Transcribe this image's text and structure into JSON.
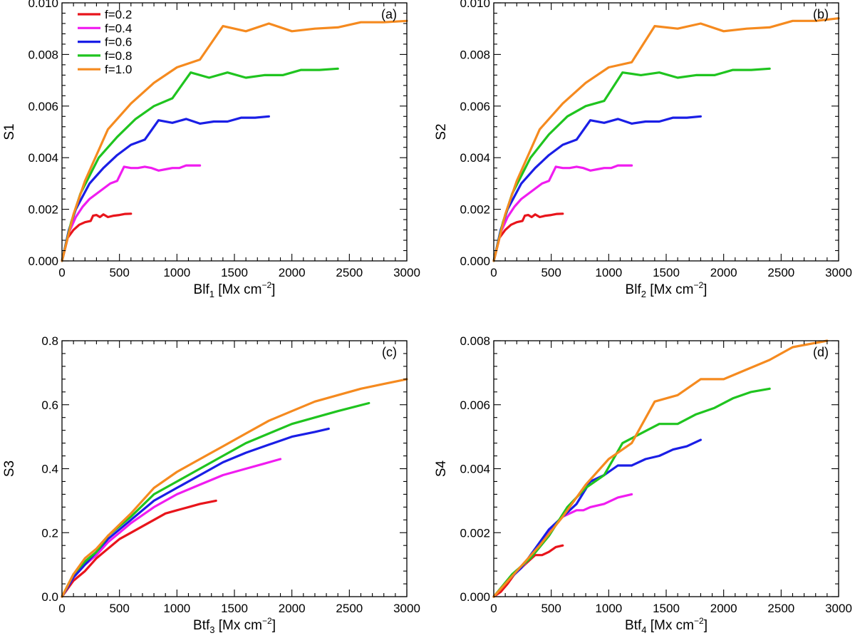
{
  "chart_data": [
    {
      "type": "line",
      "panel_label": "(a)",
      "ylabel": "S1",
      "xlabel": {
        "base": "Blf",
        "sub": "1",
        "unit_pre": " [Mx cm",
        "unit_sup": "−2",
        "unit_post": "]"
      },
      "xlim": [
        0,
        3000
      ],
      "ylim": [
        0,
        0.01
      ],
      "xticks": [
        0,
        500,
        1000,
        1500,
        2000,
        2500,
        3000
      ],
      "xtick_labels": [
        "0",
        "500",
        "1000",
        "1500",
        "2000",
        "2500",
        "3000"
      ],
      "yticks": [
        0,
        0.002,
        0.004,
        0.006,
        0.008,
        0.01
      ],
      "ytick_labels": [
        "0.000",
        "0.002",
        "0.004",
        "0.006",
        "0.008",
        "0.010"
      ],
      "show_legend": true,
      "series": [
        {
          "name": "f=0.2",
          "color": "#e8141b",
          "x": [
            0,
            50,
            100,
            150,
            200,
            250,
            270,
            300,
            330,
            360,
            400,
            450,
            500,
            550,
            600
          ],
          "y": [
            0,
            0.0009,
            0.0012,
            0.0014,
            0.0015,
            0.00155,
            0.00175,
            0.00178,
            0.0017,
            0.0018,
            0.0017,
            0.00175,
            0.00178,
            0.00182,
            0.00183
          ]
        },
        {
          "name": "f=0.4",
          "color": "#f01cf0",
          "x": [
            0,
            60,
            120,
            180,
            240,
            300,
            360,
            420,
            480,
            540,
            600,
            660,
            720,
            780,
            840,
            900,
            960,
            1020,
            1080,
            1140,
            1200
          ],
          "y": [
            0,
            0.0011,
            0.0017,
            0.0021,
            0.0024,
            0.0026,
            0.0028,
            0.003,
            0.0031,
            0.00365,
            0.0036,
            0.0036,
            0.00365,
            0.0036,
            0.0035,
            0.00355,
            0.0036,
            0.0036,
            0.0037,
            0.0037,
            0.0037
          ]
        },
        {
          "name": "f=0.6",
          "color": "#1a1ee6",
          "x": [
            0,
            60,
            120,
            180,
            240,
            360,
            480,
            600,
            720,
            840,
            960,
            1080,
            1200,
            1320,
            1440,
            1560,
            1680,
            1800
          ],
          "y": [
            0,
            0.0012,
            0.002,
            0.0025,
            0.003,
            0.0036,
            0.0041,
            0.0045,
            0.0047,
            0.00545,
            0.00535,
            0.0055,
            0.00532,
            0.0054,
            0.0054,
            0.00555,
            0.00555,
            0.0056
          ]
        },
        {
          "name": "f=0.8",
          "color": "#1fc41f",
          "x": [
            0,
            80,
            160,
            240,
            320,
            480,
            640,
            800,
            960,
            1120,
            1280,
            1440,
            1600,
            1760,
            1920,
            2080,
            2240,
            2400
          ],
          "y": [
            0,
            0.0015,
            0.0026,
            0.0033,
            0.004,
            0.0048,
            0.0055,
            0.006,
            0.0063,
            0.0073,
            0.0071,
            0.0073,
            0.0071,
            0.0072,
            0.0072,
            0.0074,
            0.0074,
            0.00745
          ]
        },
        {
          "name": "f=1.0",
          "color": "#f58a1f",
          "x": [
            0,
            100,
            200,
            300,
            400,
            600,
            800,
            1000,
            1200,
            1400,
            1600,
            1800,
            2000,
            2200,
            2400,
            2600,
            2800,
            3000
          ],
          "y": [
            0,
            0.0018,
            0.0031,
            0.0041,
            0.0051,
            0.0061,
            0.0069,
            0.0075,
            0.0078,
            0.0091,
            0.0089,
            0.0092,
            0.0089,
            0.009,
            0.00905,
            0.00925,
            0.00925,
            0.0093
          ]
        }
      ]
    },
    {
      "type": "line",
      "panel_label": "(b)",
      "ylabel": "S2",
      "xlabel": {
        "base": "Blf",
        "sub": "2",
        "unit_pre": " [Mx cm",
        "unit_sup": "−2",
        "unit_post": "]"
      },
      "xlim": [
        0,
        3000
      ],
      "ylim": [
        0,
        0.01
      ],
      "xticks": [
        0,
        500,
        1000,
        1500,
        2000,
        2500,
        3000
      ],
      "xtick_labels": [
        "0",
        "500",
        "1000",
        "1500",
        "2000",
        "2500",
        "3000"
      ],
      "yticks": [
        0,
        0.002,
        0.004,
        0.006,
        0.008,
        0.01
      ],
      "ytick_labels": [
        "0.000",
        "0.002",
        "0.004",
        "0.006",
        "0.008",
        "0.010"
      ],
      "show_legend": false,
      "series": [
        {
          "name": "f=0.2",
          "color": "#e8141b",
          "x": [
            0,
            50,
            100,
            150,
            200,
            250,
            270,
            300,
            330,
            360,
            400,
            450,
            500,
            550,
            600
          ],
          "y": [
            0,
            0.0009,
            0.0012,
            0.0014,
            0.0015,
            0.00155,
            0.00175,
            0.00178,
            0.0017,
            0.0018,
            0.0017,
            0.00175,
            0.00178,
            0.00182,
            0.00183
          ]
        },
        {
          "name": "f=0.4",
          "color": "#f01cf0",
          "x": [
            0,
            60,
            120,
            180,
            240,
            300,
            360,
            420,
            480,
            540,
            600,
            660,
            720,
            780,
            840,
            900,
            960,
            1020,
            1080,
            1140,
            1200
          ],
          "y": [
            0,
            0.0011,
            0.0017,
            0.0021,
            0.0024,
            0.0026,
            0.0028,
            0.003,
            0.0031,
            0.00365,
            0.0036,
            0.0036,
            0.00365,
            0.0036,
            0.0035,
            0.00355,
            0.0036,
            0.0036,
            0.0037,
            0.0037,
            0.0037
          ]
        },
        {
          "name": "f=0.6",
          "color": "#1a1ee6",
          "x": [
            0,
            60,
            120,
            180,
            240,
            360,
            480,
            600,
            720,
            840,
            960,
            1080,
            1200,
            1320,
            1440,
            1560,
            1680,
            1800
          ],
          "y": [
            0,
            0.0012,
            0.002,
            0.0025,
            0.003,
            0.0036,
            0.0041,
            0.0045,
            0.0047,
            0.00545,
            0.00535,
            0.0055,
            0.00532,
            0.0054,
            0.0054,
            0.00555,
            0.00555,
            0.0056
          ]
        },
        {
          "name": "f=0.8",
          "color": "#1fc41f",
          "x": [
            0,
            80,
            160,
            240,
            320,
            480,
            640,
            800,
            960,
            1120,
            1280,
            1440,
            1600,
            1760,
            1920,
            2080,
            2240,
            2400
          ],
          "y": [
            0,
            0.0015,
            0.0026,
            0.0033,
            0.004,
            0.0049,
            0.0056,
            0.006,
            0.0062,
            0.0073,
            0.0072,
            0.0073,
            0.0071,
            0.0072,
            0.0072,
            0.0074,
            0.0074,
            0.00745
          ]
        },
        {
          "name": "f=1.0",
          "color": "#f58a1f",
          "x": [
            0,
            100,
            200,
            300,
            400,
            600,
            800,
            1000,
            1200,
            1400,
            1600,
            1800,
            2000,
            2200,
            2400,
            2600,
            2800,
            3000
          ],
          "y": [
            0,
            0.0018,
            0.0031,
            0.0041,
            0.0051,
            0.0061,
            0.0069,
            0.0075,
            0.0077,
            0.0091,
            0.009,
            0.0092,
            0.0089,
            0.009,
            0.00905,
            0.0093,
            0.0093,
            0.0094
          ]
        }
      ]
    },
    {
      "type": "line",
      "panel_label": "(c)",
      "ylabel": "S3",
      "xlabel": {
        "base": "Btf",
        "sub": "3",
        "unit_pre": " [Mx cm",
        "unit_sup": "−2",
        "unit_post": "]"
      },
      "xlim": [
        0,
        3000
      ],
      "ylim": [
        0,
        0.8
      ],
      "xticks": [
        0,
        500,
        1000,
        1500,
        2000,
        2500,
        3000
      ],
      "xtick_labels": [
        "0",
        "500",
        "1000",
        "1500",
        "2000",
        "2500",
        "3000"
      ],
      "yticks": [
        0,
        0.2,
        0.4,
        0.6,
        0.8
      ],
      "ytick_labels": [
        "0.0",
        "0.2",
        "0.4",
        "0.6",
        "0.8"
      ],
      "show_legend": false,
      "series": [
        {
          "name": "f=0.2",
          "color": "#e8141b",
          "x": [
            0,
            100,
            200,
            300,
            400,
            500,
            600,
            700,
            800,
            900,
            1000,
            1100,
            1200,
            1340
          ],
          "y": [
            0,
            0.05,
            0.08,
            0.12,
            0.15,
            0.18,
            0.2,
            0.22,
            0.24,
            0.26,
            0.27,
            0.28,
            0.29,
            0.3
          ]
        },
        {
          "name": "f=0.4",
          "color": "#f01cf0",
          "x": [
            0,
            100,
            200,
            300,
            400,
            500,
            600,
            800,
            1000,
            1200,
            1400,
            1600,
            1750,
            1900
          ],
          "y": [
            0,
            0.06,
            0.1,
            0.13,
            0.17,
            0.2,
            0.23,
            0.28,
            0.32,
            0.35,
            0.38,
            0.4,
            0.415,
            0.43
          ]
        },
        {
          "name": "f=0.6",
          "color": "#1a1ee6",
          "x": [
            0,
            100,
            200,
            300,
            400,
            600,
            800,
            1000,
            1200,
            1400,
            1600,
            1800,
            2000,
            2200,
            2320
          ],
          "y": [
            0,
            0.06,
            0.1,
            0.14,
            0.18,
            0.24,
            0.3,
            0.34,
            0.38,
            0.42,
            0.45,
            0.475,
            0.5,
            0.515,
            0.525
          ]
        },
        {
          "name": "f=0.8",
          "color": "#1fc41f",
          "x": [
            0,
            100,
            200,
            300,
            400,
            600,
            800,
            1000,
            1200,
            1400,
            1600,
            1800,
            2000,
            2200,
            2400,
            2670
          ],
          "y": [
            0,
            0.07,
            0.11,
            0.14,
            0.19,
            0.25,
            0.32,
            0.36,
            0.4,
            0.44,
            0.48,
            0.51,
            0.54,
            0.56,
            0.58,
            0.605
          ]
        },
        {
          "name": "f=1.0",
          "color": "#f58a1f",
          "x": [
            0,
            100,
            200,
            300,
            400,
            600,
            800,
            1000,
            1200,
            1400,
            1600,
            1800,
            2000,
            2200,
            2400,
            2600,
            2800,
            3000
          ],
          "y": [
            0,
            0.07,
            0.12,
            0.15,
            0.19,
            0.26,
            0.34,
            0.39,
            0.43,
            0.47,
            0.51,
            0.55,
            0.58,
            0.61,
            0.63,
            0.65,
            0.665,
            0.68
          ]
        }
      ]
    },
    {
      "type": "line",
      "panel_label": "(d)",
      "ylabel": "S4",
      "xlabel": {
        "base": "Btf",
        "sub": "4",
        "unit_pre": " [Mx cm",
        "unit_sup": "−2",
        "unit_post": "]"
      },
      "xlim": [
        0,
        3000
      ],
      "ylim": [
        0,
        0.008
      ],
      "xticks": [
        0,
        500,
        1000,
        1500,
        2000,
        2500,
        3000
      ],
      "xtick_labels": [
        "0",
        "500",
        "1000",
        "1500",
        "2000",
        "2500",
        "3000"
      ],
      "yticks": [
        0,
        0.002,
        0.004,
        0.006,
        0.008
      ],
      "ytick_labels": [
        "0.000",
        "0.002",
        "0.004",
        "0.006",
        "0.008"
      ],
      "show_legend": false,
      "series": [
        {
          "name": "f=0.2",
          "color": "#e8141b",
          "x": [
            0,
            60,
            120,
            180,
            240,
            300,
            360,
            420,
            480,
            540,
            600
          ],
          "y": [
            0,
            0.00015,
            0.0004,
            0.0007,
            0.0009,
            0.0011,
            0.0013,
            0.0013,
            0.0014,
            0.00155,
            0.0016
          ]
        },
        {
          "name": "f=0.4",
          "color": "#f01cf0",
          "x": [
            0,
            120,
            240,
            360,
            480,
            600,
            720,
            780,
            840,
            960,
            1080,
            1200
          ],
          "y": [
            0,
            0.0005,
            0.0009,
            0.0014,
            0.002,
            0.0025,
            0.0027,
            0.0027,
            0.0028,
            0.0029,
            0.0031,
            0.0032
          ]
        },
        {
          "name": "f=0.6",
          "color": "#1a1ee6",
          "x": [
            0,
            120,
            240,
            360,
            480,
            600,
            720,
            840,
            960,
            1080,
            1200,
            1320,
            1440,
            1560,
            1680,
            1800
          ],
          "y": [
            0,
            0.0005,
            0.0009,
            0.0015,
            0.0021,
            0.0025,
            0.0029,
            0.0036,
            0.0038,
            0.0041,
            0.0041,
            0.0043,
            0.0044,
            0.0046,
            0.0047,
            0.0049
          ]
        },
        {
          "name": "f=0.8",
          "color": "#1fc41f",
          "x": [
            0,
            160,
            320,
            480,
            640,
            800,
            960,
            1120,
            1280,
            1440,
            1600,
            1760,
            1920,
            2080,
            2240,
            2400
          ],
          "y": [
            0,
            0.0007,
            0.0012,
            0.0019,
            0.0028,
            0.0034,
            0.0038,
            0.0048,
            0.0051,
            0.0054,
            0.0054,
            0.0057,
            0.0059,
            0.0062,
            0.0064,
            0.0065
          ]
        },
        {
          "name": "f=1.0",
          "color": "#f58a1f",
          "x": [
            0,
            200,
            400,
            600,
            800,
            1000,
            1200,
            1400,
            1600,
            1800,
            2000,
            2200,
            2400,
            2600,
            2900
          ],
          "y": [
            0,
            0.0008,
            0.0016,
            0.0025,
            0.0035,
            0.0043,
            0.0048,
            0.0061,
            0.0063,
            0.0068,
            0.0068,
            0.0071,
            0.0074,
            0.0078,
            0.008
          ]
        }
      ]
    }
  ]
}
